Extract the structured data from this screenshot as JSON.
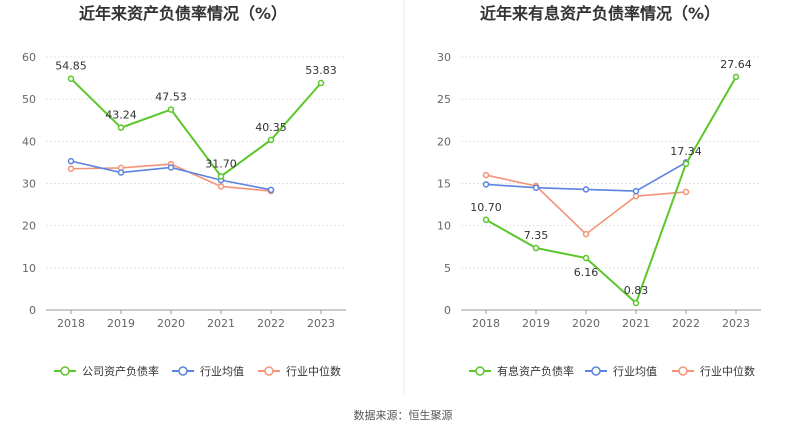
{
  "source": "数据来源：恒生聚源",
  "chart_data": [
    {
      "type": "line",
      "title": "近年来资产负债率情况（%）",
      "categories": [
        "2018",
        "2019",
        "2020",
        "2021",
        "2022",
        "2023"
      ],
      "ylim": [
        0,
        60
      ],
      "yticks": [
        0,
        10,
        20,
        30,
        40,
        50,
        60
      ],
      "grid": true,
      "legend_position": "bottom",
      "series": [
        {
          "name": "公司资产负债率",
          "color": "#5cc62b",
          "values": [
            54.85,
            43.24,
            47.53,
            31.7,
            40.35,
            53.83
          ],
          "labels": [
            "54.85",
            "43.24",
            "47.53",
            "31.70",
            "40.35",
            "53.83"
          ]
        },
        {
          "name": "行业均值",
          "color": "#5b84e0",
          "values": [
            35.3,
            32.6,
            33.8,
            30.8,
            28.5,
            null
          ]
        },
        {
          "name": "行业中位数",
          "color": "#f59376",
          "values": [
            33.5,
            33.7,
            34.6,
            29.3,
            28.2,
            null
          ]
        }
      ]
    },
    {
      "type": "line",
      "title": "近年来有息资产负债率情况（%）",
      "categories": [
        "2018",
        "2019",
        "2020",
        "2021",
        "2022",
        "2023"
      ],
      "ylim": [
        0,
        30
      ],
      "yticks": [
        0,
        5,
        10,
        15,
        20,
        25,
        30
      ],
      "grid": true,
      "legend_position": "bottom",
      "series": [
        {
          "name": "有息资产负债率",
          "color": "#5cc62b",
          "values": [
            10.7,
            7.35,
            6.16,
            0.83,
            17.34,
            27.64
          ],
          "labels": [
            "10.70",
            "7.35",
            "6.16",
            "0.83",
            "17.34",
            "27.64"
          ]
        },
        {
          "name": "行业均值",
          "color": "#5b84e0",
          "values": [
            14.9,
            14.5,
            14.3,
            14.1,
            17.5,
            null
          ]
        },
        {
          "name": "行业中位数",
          "color": "#f59376",
          "values": [
            16.0,
            14.7,
            9.0,
            13.5,
            14.0,
            null
          ]
        }
      ]
    }
  ]
}
